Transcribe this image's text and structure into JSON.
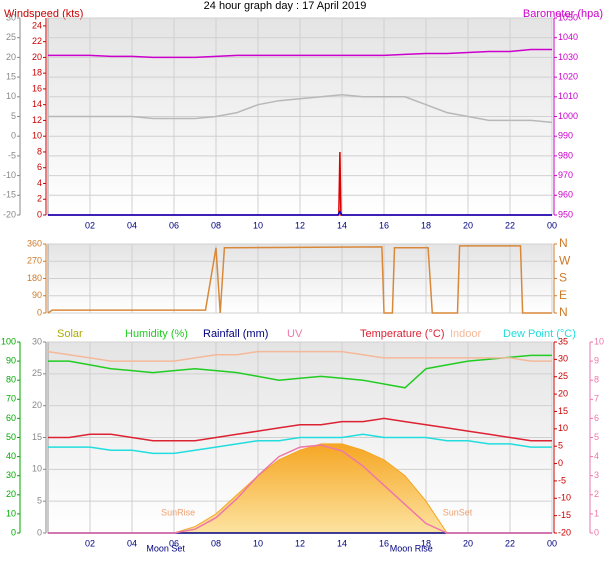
{
  "chart_data": [
    {
      "type": "line",
      "title": "24 hour graph day : 17 April 2019",
      "xlim": [
        0,
        24
      ],
      "xticks": [
        {
          "value": 2,
          "label": "02"
        },
        {
          "value": 4,
          "label": "04"
        },
        {
          "value": 6,
          "label": "06"
        },
        {
          "value": 8,
          "label": "08"
        },
        10,
        12,
        14,
        16,
        18,
        20,
        22,
        {
          "value": 24,
          "label": "00"
        }
      ],
      "x": [
        0,
        1,
        2,
        3,
        4,
        5,
        6,
        7,
        8,
        9,
        10,
        11,
        12,
        13,
        14,
        15,
        16,
        17,
        18,
        19,
        20,
        21,
        22,
        23,
        24
      ],
      "axes": [
        {
          "side": "left",
          "label": "Windspeed (kts)",
          "color": "#cc0000",
          "lim": [
            0,
            25
          ],
          "ticks": [
            0,
            2,
            4,
            6,
            8,
            10,
            12,
            14,
            16,
            18,
            20,
            22,
            24
          ]
        },
        {
          "side": "left",
          "color": "#888888",
          "grid": true,
          "lim": [
            -20,
            30
          ],
          "ticks": [
            -20,
            -15,
            -10,
            -5,
            0,
            5,
            10,
            15,
            20,
            25,
            30
          ]
        },
        {
          "side": "right",
          "label": "Barometer (hpa)",
          "color": "#cc00cc",
          "lim": [
            950,
            1050
          ],
          "ticks": [
            950,
            960,
            970,
            980,
            990,
            1000,
            1010,
            1020,
            1030,
            1040,
            1050
          ]
        }
      ],
      "series": [
        {
          "color": "#cc00cc",
          "axis": 2,
          "values": [
            1031,
            1031,
            1031,
            1030.5,
            1030.5,
            1030,
            1030,
            1030,
            1030.5,
            1031,
            1031,
            1031,
            1031,
            1031,
            1031,
            1031,
            1031,
            1031.5,
            1032,
            1032,
            1032.5,
            1033,
            1033,
            1034,
            1034
          ]
        },
        {
          "color": "#b8b8b8",
          "axis": 1,
          "values": [
            5,
            5,
            5,
            5,
            5,
            4.5,
            4.5,
            4.5,
            5,
            6,
            8,
            9,
            9.5,
            10,
            10.5,
            10,
            10,
            10,
            8,
            6,
            5,
            4,
            4,
            4,
            3.5
          ]
        },
        {
          "color": "#dd0000",
          "axis": 0,
          "x": [
            0,
            13.85,
            13.9,
            13.95,
            24
          ],
          "values": [
            0,
            0,
            8,
            0,
            0
          ]
        },
        {
          "color": "#0000cc",
          "axis": 0,
          "x": [
            0,
            13.8,
            13.9,
            14,
            24
          ],
          "values": [
            0,
            0,
            0.4,
            0,
            0
          ]
        }
      ]
    },
    {
      "type": "line",
      "xlim": [
        0,
        24
      ],
      "show_xtick_labels": false,
      "xticks": [
        2,
        4,
        6,
        8,
        10,
        12,
        14,
        16,
        18,
        20,
        22,
        24
      ],
      "axes": [
        {
          "side": "left",
          "color": "#cc7a29",
          "grid": true,
          "lim": [
            0,
            360
          ],
          "ticks": [
            0,
            90,
            180,
            270,
            360
          ]
        },
        {
          "side": "right",
          "color": "#cc7a29",
          "big": true,
          "lim": [
            0,
            360
          ],
          "ticks": [
            {
              "value": 0,
              "label": "N"
            },
            {
              "value": 90,
              "label": "E"
            },
            {
              "value": 180,
              "label": "S"
            },
            {
              "value": 270,
              "label": "W"
            },
            {
              "value": 360,
              "label": "N"
            }
          ]
        }
      ],
      "series": [
        {
          "color": "#d9883a",
          "axis": 0,
          "x": [
            0,
            0.2,
            7.5,
            8.0,
            8.2,
            8.4,
            8.6,
            15.9,
            16.0,
            16.4,
            16.5,
            18.1,
            18.3,
            19.5,
            19.6,
            22.5,
            22.6,
            24
          ],
          "values": [
            0,
            15,
            15,
            340,
            0,
            340,
            340,
            345,
            0,
            0,
            340,
            340,
            0,
            0,
            350,
            350,
            0,
            0
          ]
        }
      ]
    },
    {
      "type": "line",
      "xlim": [
        0,
        24
      ],
      "xticks": [
        {
          "value": 2,
          "label": "02"
        },
        {
          "value": 4,
          "label": "04"
        },
        {
          "value": 6,
          "label": "06"
        },
        {
          "value": 8,
          "label": "08"
        },
        10,
        12,
        14,
        16,
        18,
        20,
        22,
        {
          "value": 24,
          "label": "00"
        }
      ],
      "x": [
        0,
        1,
        2,
        3,
        4,
        5,
        6,
        7,
        8,
        9,
        10,
        11,
        12,
        13,
        14,
        15,
        16,
        17,
        18,
        19,
        20,
        21,
        22,
        23,
        24
      ],
      "axes": [
        {
          "side": "left",
          "color": "#888888",
          "grid": true,
          "lim": [
            0,
            30
          ],
          "ticks": [
            0,
            5,
            10,
            15,
            20,
            25,
            30
          ]
        },
        {
          "side": "left",
          "color": "#00aa00",
          "lim": [
            0,
            100
          ],
          "ticks": [
            0,
            10,
            20,
            30,
            40,
            50,
            60,
            70,
            80,
            90,
            100
          ]
        },
        {
          "side": "right",
          "color": "#cc0000",
          "lim": [
            -20,
            35
          ],
          "ticks": [
            -20,
            -15,
            -10,
            -5,
            0,
            5,
            10,
            15,
            20,
            25,
            30,
            35
          ]
        },
        {
          "side": "right",
          "color": "#ee77aa",
          "lim": [
            0,
            10
          ],
          "ticks": [
            0,
            1,
            2,
            3,
            4,
            5,
            6,
            7,
            8,
            9,
            10
          ]
        }
      ],
      "series": [
        {
          "name": "Solar",
          "color": "#f5a623",
          "fill": true,
          "axis": 0,
          "values": [
            0,
            0,
            0,
            0,
            0,
            0,
            0,
            1,
            3,
            6,
            9,
            11.5,
            13,
            14,
            14,
            13,
            11.5,
            9,
            5,
            0,
            0,
            0,
            0,
            0,
            0
          ]
        },
        {
          "name": "Humidity (%)",
          "color": "#22cc22",
          "axis": 1,
          "values": [
            90,
            90,
            88,
            86,
            85,
            84,
            85,
            86,
            85,
            84,
            82,
            80,
            81,
            82,
            81,
            80,
            78,
            76,
            86,
            88,
            90,
            91,
            92,
            93,
            93
          ]
        },
        {
          "name": "Rainfall (mm)",
          "color": "#000080",
          "axis": 0,
          "values": [
            0,
            0,
            0,
            0,
            0,
            0,
            0,
            0,
            0,
            0,
            0,
            0,
            0,
            0,
            0,
            0,
            0,
            0,
            0,
            0,
            0,
            0,
            0,
            0,
            0
          ]
        },
        {
          "name": "UV",
          "color": "#ee77aa",
          "axis": 3,
          "values": [
            0,
            0,
            0,
            0,
            0,
            0,
            0,
            0.2,
            0.8,
            1.8,
            3,
            4,
            4.5,
            4.6,
            4.3,
            3.5,
            2.5,
            1.5,
            0.5,
            0,
            0,
            0,
            0,
            0,
            0
          ]
        },
        {
          "name": "Temperature (°C)",
          "color": "#dd2233",
          "axis": 0,
          "values": [
            15,
            15,
            15.5,
            15.5,
            15,
            14.5,
            14.5,
            14.5,
            15,
            15.5,
            16,
            16.5,
            17,
            17,
            17.5,
            17.5,
            18,
            17.5,
            17,
            16.5,
            16,
            15.5,
            15,
            14.5,
            14.5
          ]
        },
        {
          "name": "Indoor",
          "color": "#f4b99a",
          "axis": 0,
          "values": [
            28.5,
            28,
            27.5,
            27,
            27,
            27,
            27,
            27.5,
            28,
            28,
            28.5,
            28.5,
            28.5,
            28.5,
            28.5,
            28,
            27.5,
            27.5,
            27.5,
            27.5,
            27.5,
            27.5,
            27.5,
            27,
            27
          ]
        },
        {
          "name": "Dew Point (°C)",
          "color": "#22dddd",
          "axis": 0,
          "values": [
            13.5,
            13.5,
            13.5,
            13,
            13,
            12.5,
            12.5,
            13,
            13.5,
            14,
            14.5,
            14.5,
            15,
            15,
            15,
            15.5,
            15,
            15,
            15,
            14.5,
            14.5,
            14,
            14,
            13.5,
            13.5
          ]
        }
      ],
      "annotations": [
        {
          "text": "SunRise",
          "x": 6.2
        },
        {
          "text": "SunSet",
          "x": 19.5
        },
        {
          "text": "Moon Set",
          "x": 5.6
        },
        {
          "text": "Moon Rise",
          "x": 17.3
        }
      ]
    }
  ]
}
